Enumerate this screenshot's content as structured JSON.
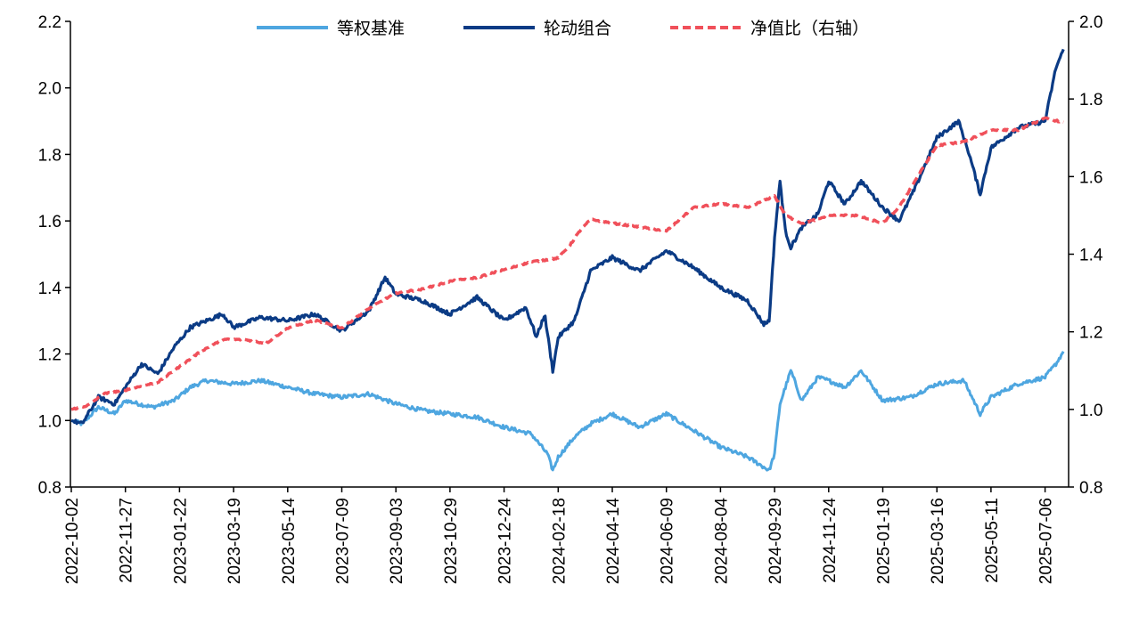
{
  "chart_data": {
    "type": "line",
    "title": "",
    "xlabel": "",
    "ylabel": "",
    "ylim_left": [
      0.8,
      2.2
    ],
    "ylim_right": [
      0.8,
      2.0
    ],
    "yticks_left": [
      "0.8",
      "1.0",
      "1.2",
      "1.4",
      "1.6",
      "1.8",
      "2.0",
      "2.2"
    ],
    "yticks_right": [
      "0.8",
      "1.0",
      "1.2",
      "1.4",
      "1.6",
      "1.8",
      "2.0"
    ],
    "x_ticks": [
      "2022-10-02",
      "2022-11-27",
      "2023-01-22",
      "2023-03-19",
      "2023-05-14",
      "2023-07-09",
      "2023-09-03",
      "2023-10-29",
      "2023-12-24",
      "2024-02-18",
      "2024-04-14",
      "2024-06-09",
      "2024-08-04",
      "2024-09-29",
      "2024-11-24",
      "2025-01-19",
      "2025-03-16",
      "2025-05-11",
      "2025-07-06"
    ],
    "legend_position": "top-center",
    "series": [
      {
        "name": "等权基准",
        "axis": "left",
        "color": "#4EA6E0",
        "style": "solid",
        "t": [
          0,
          0.2,
          0.5,
          0.8,
          1.0,
          1.5,
          1.9,
          2.2,
          2.5,
          3.0,
          3.5,
          4.0,
          4.5,
          5.0,
          5.5,
          6.0,
          6.5,
          7.0,
          7.5,
          8.0,
          8.5,
          8.8,
          8.9,
          9.0,
          9.3,
          9.6,
          10.0,
          10.5,
          11.0,
          11.5,
          12.0,
          12.5,
          12.8,
          12.9,
          13.0,
          13.1,
          13.3,
          13.5,
          13.8,
          14.0,
          14.3,
          14.6,
          15.0,
          15.5,
          16.0,
          16.5,
          16.8,
          17.0,
          17.5,
          18.0,
          18.2,
          18.35
        ],
        "values": [
          1.0,
          0.99,
          1.04,
          1.02,
          1.06,
          1.04,
          1.06,
          1.1,
          1.12,
          1.11,
          1.12,
          1.1,
          1.08,
          1.07,
          1.08,
          1.05,
          1.03,
          1.02,
          1.01,
          0.98,
          0.96,
          0.9,
          0.85,
          0.89,
          0.95,
          0.99,
          1.02,
          0.98,
          1.02,
          0.97,
          0.92,
          0.89,
          0.86,
          0.85,
          0.9,
          1.05,
          1.15,
          1.06,
          1.13,
          1.12,
          1.1,
          1.15,
          1.06,
          1.07,
          1.11,
          1.12,
          1.02,
          1.07,
          1.11,
          1.13,
          1.17,
          1.21
        ]
      },
      {
        "name": "轮动组合",
        "axis": "left",
        "color": "#0B3B85",
        "style": "solid",
        "t": [
          0,
          0.2,
          0.5,
          0.8,
          1.0,
          1.3,
          1.6,
          1.9,
          2.2,
          2.5,
          2.8,
          3.0,
          3.5,
          4.0,
          4.5,
          5.0,
          5.5,
          5.8,
          6.0,
          6.5,
          7.0,
          7.5,
          8.0,
          8.4,
          8.6,
          8.75,
          8.9,
          9.0,
          9.3,
          9.6,
          10.0,
          10.5,
          11.0,
          11.5,
          12.0,
          12.5,
          12.8,
          12.9,
          13.0,
          13.1,
          13.2,
          13.3,
          13.5,
          13.8,
          14.0,
          14.3,
          14.6,
          15.0,
          15.3,
          15.6,
          16.0,
          16.4,
          16.6,
          16.8,
          17.0,
          17.5,
          18.0,
          18.2,
          18.35
        ],
        "values": [
          1.0,
          0.99,
          1.07,
          1.05,
          1.1,
          1.17,
          1.14,
          1.22,
          1.28,
          1.3,
          1.32,
          1.28,
          1.31,
          1.3,
          1.32,
          1.27,
          1.33,
          1.43,
          1.38,
          1.36,
          1.32,
          1.37,
          1.3,
          1.34,
          1.25,
          1.32,
          1.15,
          1.25,
          1.3,
          1.45,
          1.49,
          1.45,
          1.51,
          1.46,
          1.4,
          1.36,
          1.29,
          1.3,
          1.55,
          1.72,
          1.57,
          1.52,
          1.58,
          1.62,
          1.72,
          1.65,
          1.72,
          1.64,
          1.6,
          1.7,
          1.85,
          1.9,
          1.8,
          1.68,
          1.82,
          1.88,
          1.9,
          2.06,
          2.12
        ]
      },
      {
        "name": "净值比（右轴）",
        "axis": "right",
        "color": "#F0505A",
        "style": "dashed",
        "t": [
          0,
          0.3,
          0.6,
          1.0,
          1.3,
          1.6,
          2.0,
          2.4,
          2.8,
          3.2,
          3.6,
          4.0,
          4.5,
          5.0,
          5.5,
          6.0,
          6.5,
          7.0,
          7.5,
          8.0,
          8.5,
          9.0,
          9.2,
          9.4,
          9.6,
          10.0,
          10.5,
          11.0,
          11.5,
          12.0,
          12.5,
          13.0,
          13.2,
          13.5,
          13.8,
          14.0,
          14.5,
          15.0,
          15.3,
          15.6,
          16.0,
          16.5,
          17.0,
          17.5,
          18.0,
          18.35
        ],
        "values": [
          1.0,
          1.01,
          1.04,
          1.05,
          1.06,
          1.07,
          1.11,
          1.15,
          1.18,
          1.18,
          1.17,
          1.21,
          1.23,
          1.21,
          1.26,
          1.3,
          1.31,
          1.33,
          1.34,
          1.36,
          1.38,
          1.39,
          1.42,
          1.46,
          1.49,
          1.48,
          1.47,
          1.46,
          1.52,
          1.53,
          1.52,
          1.55,
          1.5,
          1.48,
          1.49,
          1.5,
          1.5,
          1.48,
          1.52,
          1.59,
          1.68,
          1.69,
          1.72,
          1.72,
          1.75,
          1.74
        ]
      }
    ]
  }
}
